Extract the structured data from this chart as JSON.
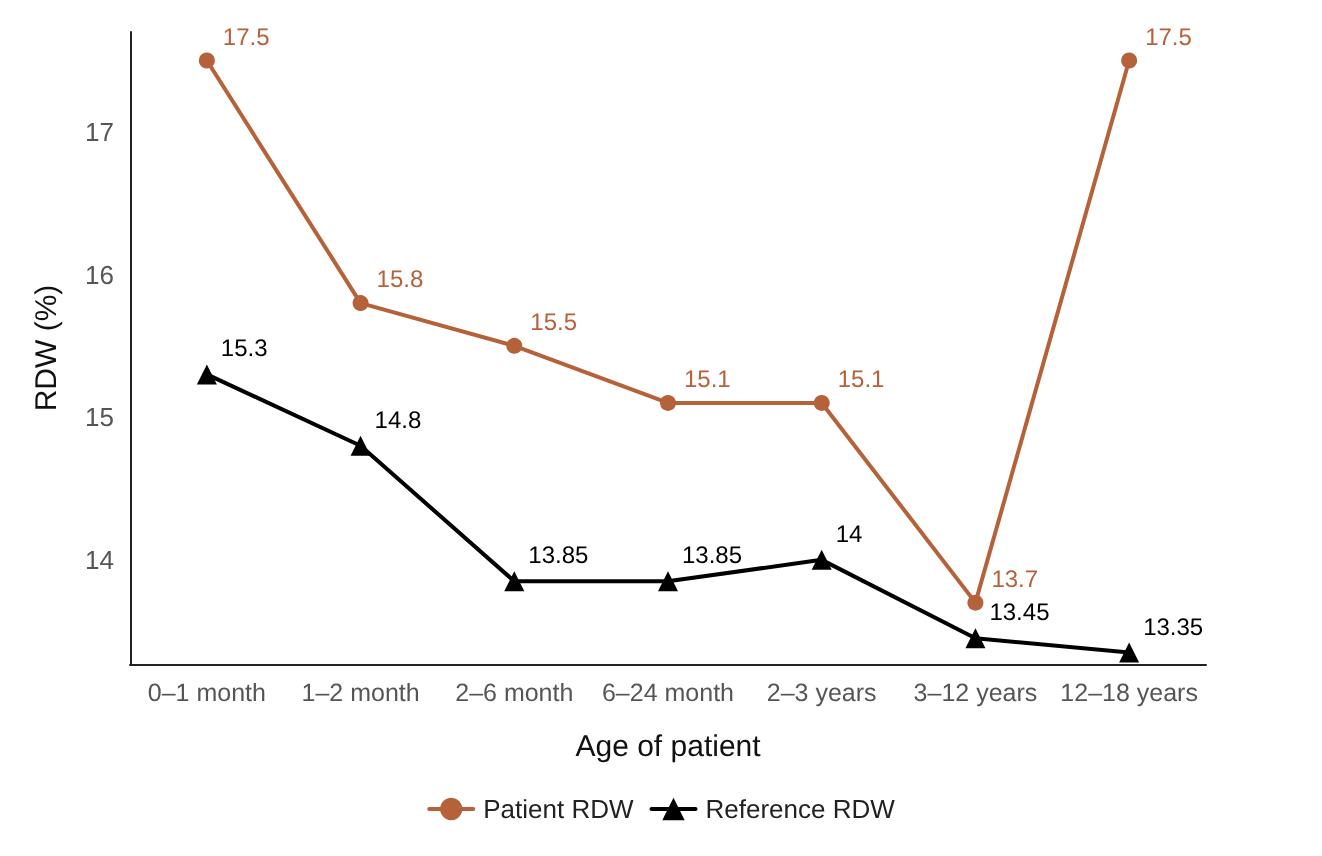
{
  "chart_data": {
    "type": "line",
    "xlabel": "Age of patient",
    "ylabel": "RDW (%)",
    "categories": [
      "0–1 month",
      "1–2 month",
      "2–6 month",
      "6–24 month",
      "2–3 years",
      "3–12 years",
      "12–18 years"
    ],
    "series": [
      {
        "name": "Patient RDW",
        "color": "#b5623a",
        "marker": "circle",
        "values": [
          17.5,
          15.8,
          15.5,
          15.1,
          15.1,
          13.7,
          17.5
        ]
      },
      {
        "name": "Reference RDW",
        "color": "#000000",
        "marker": "triangle",
        "values": [
          15.3,
          14.8,
          13.85,
          13.85,
          14,
          13.45,
          13.35
        ]
      }
    ],
    "ylim": [
      13.27,
      17.7
    ],
    "yticks": [
      14,
      15,
      16,
      17
    ],
    "grid": false,
    "legend": "bottom",
    "data_labels": true,
    "line_style": "solid"
  }
}
